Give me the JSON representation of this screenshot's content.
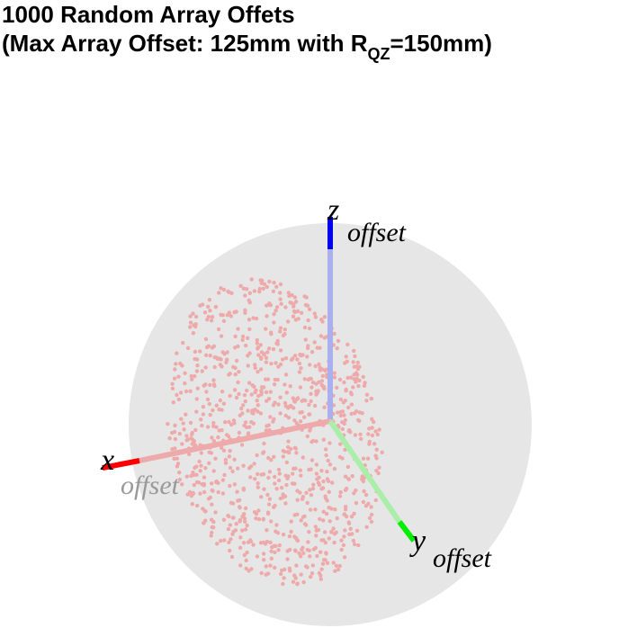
{
  "title": {
    "line1": "1000 Random Array Offets",
    "line2_prefix": "(Max Array Offset: 125mm with R",
    "line2_sub": "QZ",
    "line2_suffix": "=150mm)"
  },
  "axes": {
    "x": {
      "symbol": "x",
      "subscript": "offset",
      "color": "#ff0000"
    },
    "y": {
      "symbol": "y",
      "subscript": "offset",
      "color": "#00ee00"
    },
    "z": {
      "symbol": "z",
      "subscript": "offset",
      "color": "#0000ee"
    }
  },
  "colors": {
    "sphere": "#e6e6e6",
    "points": "#eeaaaa"
  },
  "chart_data": {
    "type": "scatter",
    "title": "1000 Random Array Offets (Max Array Offset: 125mm with RQZ=150mm)",
    "n_points": 1000,
    "max_offset_mm": 125,
    "r_qz_mm": 150,
    "axes_labels": [
      "x offset",
      "y offset",
      "z offset"
    ],
    "grid": false
  }
}
